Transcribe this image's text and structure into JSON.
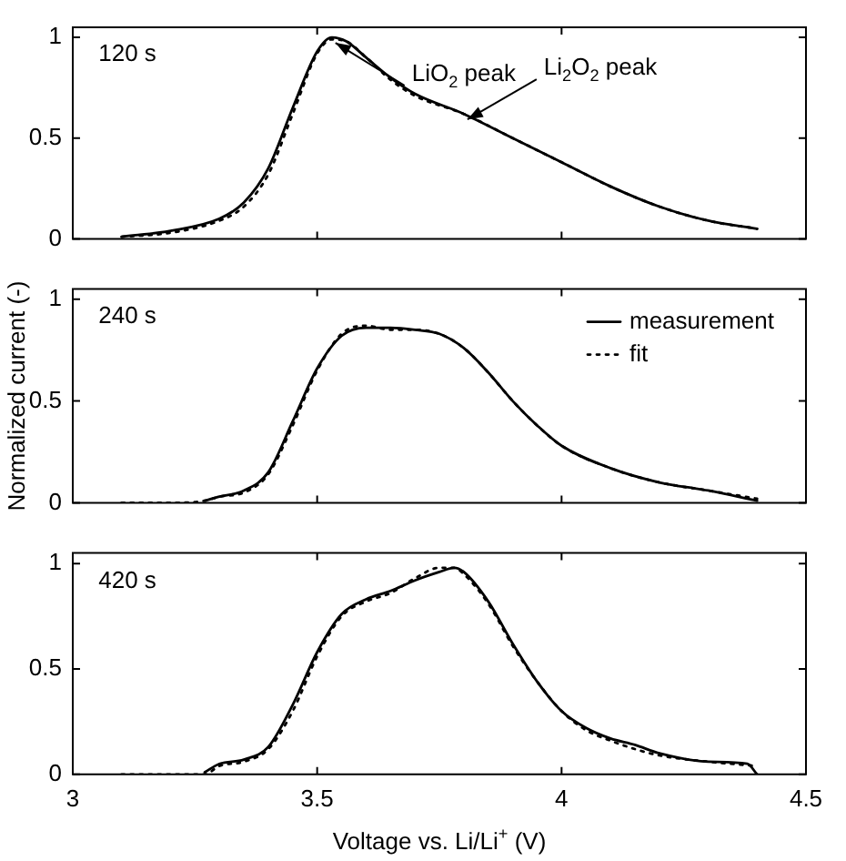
{
  "chart_data": [
    {
      "type": "line",
      "annotations": [
        "120 s",
        {
          "text": "LiO$_{2}$ peak",
          "x": 3.53,
          "y": 1.0
        },
        {
          "text": "Li$_{2}$O$_{2}$ peak",
          "x": 3.8,
          "y": 0.62
        }
      ],
      "xlim": [
        3,
        4.5
      ],
      "xticks": [
        3,
        3.5,
        4,
        4.5
      ],
      "ylim": [
        0,
        1.05
      ],
      "yticks": [
        0,
        0.5,
        1
      ],
      "tick_labels": "y",
      "legend": false,
      "series": [
        {
          "color": "#000000",
          "line_style": "solid",
          "x": [
            3.1,
            3.2,
            3.3,
            3.35,
            3.4,
            3.45,
            3.5,
            3.53,
            3.56,
            3.6,
            3.65,
            3.7,
            3.8,
            3.9,
            4.0,
            4.1,
            4.2,
            4.3,
            4.4
          ],
          "values": [
            0.01,
            0.04,
            0.1,
            0.18,
            0.35,
            0.65,
            0.93,
            1.0,
            0.98,
            0.9,
            0.8,
            0.72,
            0.62,
            0.5,
            0.38,
            0.26,
            0.16,
            0.09,
            0.05
          ]
        },
        {
          "color": "#000000",
          "line_style": "dotted",
          "x": [
            3.1,
            3.2,
            3.3,
            3.35,
            3.4,
            3.45,
            3.5,
            3.53,
            3.56,
            3.6,
            3.65,
            3.7,
            3.8,
            3.9,
            4.0,
            4.1,
            4.2,
            4.3,
            4.4
          ],
          "values": [
            0.01,
            0.03,
            0.09,
            0.16,
            0.32,
            0.62,
            0.92,
            0.99,
            0.98,
            0.9,
            0.79,
            0.71,
            0.62,
            0.5,
            0.38,
            0.26,
            0.16,
            0.09,
            0.05
          ]
        }
      ]
    },
    {
      "type": "line",
      "annotations": [
        "240 s"
      ],
      "ylabel": "Normalized current (-)",
      "xlim": [
        3,
        4.5
      ],
      "xticks": [
        3,
        3.5,
        4,
        4.5
      ],
      "ylim": [
        0,
        1.05
      ],
      "yticks": [
        0,
        0.5,
        1
      ],
      "tick_labels": "y",
      "legend": "top right",
      "series": [
        {
          "name": "measurement",
          "color": "#000000",
          "line_style": "solid",
          "x": [
            3.27,
            3.3,
            3.35,
            3.4,
            3.45,
            3.5,
            3.55,
            3.6,
            3.65,
            3.7,
            3.75,
            3.8,
            3.85,
            3.9,
            3.95,
            4.0,
            4.1,
            4.2,
            4.3,
            4.4
          ],
          "values": [
            0.01,
            0.03,
            0.06,
            0.15,
            0.4,
            0.66,
            0.82,
            0.86,
            0.86,
            0.85,
            0.83,
            0.76,
            0.64,
            0.5,
            0.38,
            0.28,
            0.17,
            0.1,
            0.06,
            0.01
          ]
        },
        {
          "name": "fit",
          "color": "#000000",
          "line_style": "dotted",
          "x": [
            3.1,
            3.2,
            3.27,
            3.3,
            3.35,
            3.4,
            3.45,
            3.5,
            3.55,
            3.6,
            3.65,
            3.7,
            3.75,
            3.8,
            3.85,
            3.9,
            3.95,
            4.0,
            4.1,
            4.2,
            4.3,
            4.4
          ],
          "values": [
            0.0,
            0.0,
            0.01,
            0.03,
            0.05,
            0.14,
            0.38,
            0.65,
            0.83,
            0.87,
            0.85,
            0.85,
            0.83,
            0.76,
            0.64,
            0.5,
            0.38,
            0.28,
            0.17,
            0.1,
            0.06,
            0.02
          ]
        }
      ]
    },
    {
      "type": "line",
      "annotations": [
        "420 s"
      ],
      "xlabel": "Voltage vs. Li/Li$^{+}$ (V)",
      "xlim": [
        3,
        4.5
      ],
      "xticks": [
        3,
        3.5,
        4,
        4.5
      ],
      "ylim": [
        0,
        1.05
      ],
      "yticks": [
        0,
        0.5,
        1
      ],
      "legend": false,
      "series": [
        {
          "color": "#000000",
          "line_style": "solid",
          "x": [
            3.27,
            3.3,
            3.35,
            3.4,
            3.45,
            3.5,
            3.55,
            3.6,
            3.65,
            3.7,
            3.75,
            3.78,
            3.8,
            3.85,
            3.9,
            3.95,
            4.0,
            4.05,
            4.1,
            4.15,
            4.2,
            4.3,
            4.38,
            4.4
          ],
          "values": [
            0.01,
            0.05,
            0.07,
            0.13,
            0.33,
            0.58,
            0.76,
            0.83,
            0.87,
            0.92,
            0.96,
            0.98,
            0.96,
            0.82,
            0.62,
            0.44,
            0.3,
            0.22,
            0.17,
            0.14,
            0.1,
            0.06,
            0.05,
            0.0
          ]
        },
        {
          "color": "#000000",
          "line_style": "dotted",
          "x": [
            3.1,
            3.2,
            3.27,
            3.3,
            3.35,
            3.4,
            3.45,
            3.5,
            3.55,
            3.6,
            3.65,
            3.7,
            3.75,
            3.78,
            3.8,
            3.85,
            3.9,
            3.95,
            4.0,
            4.05,
            4.1,
            4.15,
            4.2,
            4.3,
            4.4
          ],
          "values": [
            0.0,
            0.0,
            0.0,
            0.04,
            0.06,
            0.12,
            0.3,
            0.56,
            0.75,
            0.82,
            0.86,
            0.93,
            0.98,
            0.98,
            0.95,
            0.81,
            0.61,
            0.44,
            0.3,
            0.21,
            0.16,
            0.12,
            0.09,
            0.06,
            0.04
          ]
        }
      ]
    }
  ]
}
